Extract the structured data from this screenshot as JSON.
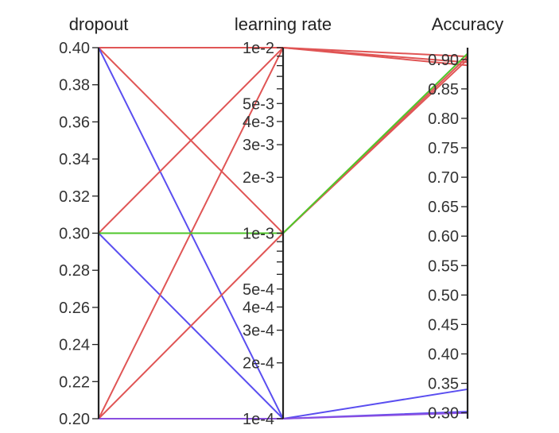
{
  "chart_data": {
    "type": "parallel-coordinates",
    "axes": [
      {
        "key": "dropout",
        "label": "dropout",
        "scale": "linear",
        "range": [
          0.2,
          0.4
        ],
        "ticks": [
          {
            "value": 0.2,
            "label": "0.20"
          },
          {
            "value": 0.22,
            "label": "0.22"
          },
          {
            "value": 0.24,
            "label": "0.24"
          },
          {
            "value": 0.26,
            "label": "0.26"
          },
          {
            "value": 0.28,
            "label": "0.28"
          },
          {
            "value": 0.3,
            "label": "0.30"
          },
          {
            "value": 0.32,
            "label": "0.32"
          },
          {
            "value": 0.34,
            "label": "0.34"
          },
          {
            "value": 0.36,
            "label": "0.36"
          },
          {
            "value": 0.38,
            "label": "0.38"
          },
          {
            "value": 0.4,
            "label": "0.40"
          }
        ]
      },
      {
        "key": "learning_rate",
        "label": "learning rate",
        "scale": "log",
        "range": [
          0.0001,
          0.01
        ],
        "ticks": [
          {
            "value": 0.0001,
            "label": "1e-4"
          },
          {
            "value": 0.0002,
            "label": "2e-4"
          },
          {
            "value": 0.0003,
            "label": "3e-4"
          },
          {
            "value": 0.0004,
            "label": "4e-4"
          },
          {
            "value": 0.0005,
            "label": "5e-4"
          },
          {
            "value": 0.0006,
            "label": ""
          },
          {
            "value": 0.0007,
            "label": ""
          },
          {
            "value": 0.0008,
            "label": ""
          },
          {
            "value": 0.0009,
            "label": ""
          },
          {
            "value": 0.001,
            "label": "1e-3"
          },
          {
            "value": 0.002,
            "label": "2e-3"
          },
          {
            "value": 0.003,
            "label": "3e-3"
          },
          {
            "value": 0.004,
            "label": "4e-3"
          },
          {
            "value": 0.005,
            "label": "5e-3"
          },
          {
            "value": 0.006,
            "label": ""
          },
          {
            "value": 0.007,
            "label": ""
          },
          {
            "value": 0.008,
            "label": ""
          },
          {
            "value": 0.009,
            "label": ""
          },
          {
            "value": 0.01,
            "label": "1e-2"
          }
        ]
      },
      {
        "key": "accuracy",
        "label": "Accuracy",
        "scale": "linear",
        "range": [
          0.29,
          0.92
        ],
        "ticks": [
          {
            "value": 0.3,
            "label": "0.30"
          },
          {
            "value": 0.35,
            "label": "0.35"
          },
          {
            "value": 0.4,
            "label": "0.40"
          },
          {
            "value": 0.45,
            "label": "0.45"
          },
          {
            "value": 0.5,
            "label": "0.50"
          },
          {
            "value": 0.55,
            "label": "0.55"
          },
          {
            "value": 0.6,
            "label": "0.60"
          },
          {
            "value": 0.65,
            "label": "0.65"
          },
          {
            "value": 0.7,
            "label": "0.70"
          },
          {
            "value": 0.75,
            "label": "0.75"
          },
          {
            "value": 0.8,
            "label": "0.80"
          },
          {
            "value": 0.85,
            "label": "0.85"
          },
          {
            "value": 0.9,
            "label": "0.90"
          }
        ]
      }
    ],
    "runs": [
      {
        "dropout": 0.4,
        "learning_rate": 0.01,
        "accuracy": 0.905,
        "color": "#e05555"
      },
      {
        "dropout": 0.4,
        "learning_rate": 0.001,
        "accuracy": 0.9,
        "color": "#e05555"
      },
      {
        "dropout": 0.4,
        "learning_rate": 0.0001,
        "accuracy": 0.302,
        "color": "#5a4ef0"
      },
      {
        "dropout": 0.3,
        "learning_rate": 0.01,
        "accuracy": 0.895,
        "color": "#e05555"
      },
      {
        "dropout": 0.3,
        "learning_rate": 0.001,
        "accuracy": 0.91,
        "color": "#7ee050",
        "highlight": true
      },
      {
        "dropout": 0.3,
        "learning_rate": 0.0001,
        "accuracy": 0.34,
        "color": "#5a4ef0"
      },
      {
        "dropout": 0.2,
        "learning_rate": 0.01,
        "accuracy": 0.89,
        "color": "#e05555"
      },
      {
        "dropout": 0.2,
        "learning_rate": 0.001,
        "accuracy": 0.905,
        "color": "#e05555"
      },
      {
        "dropout": 0.2,
        "learning_rate": 0.0001,
        "accuracy": 0.3,
        "color": "#8a4ee0"
      }
    ],
    "line_colors": {
      "high": "#e05555",
      "low": "#5a4ef0",
      "mid": "#8a4ee0",
      "highlight": "#7ee050"
    },
    "grid": false
  }
}
